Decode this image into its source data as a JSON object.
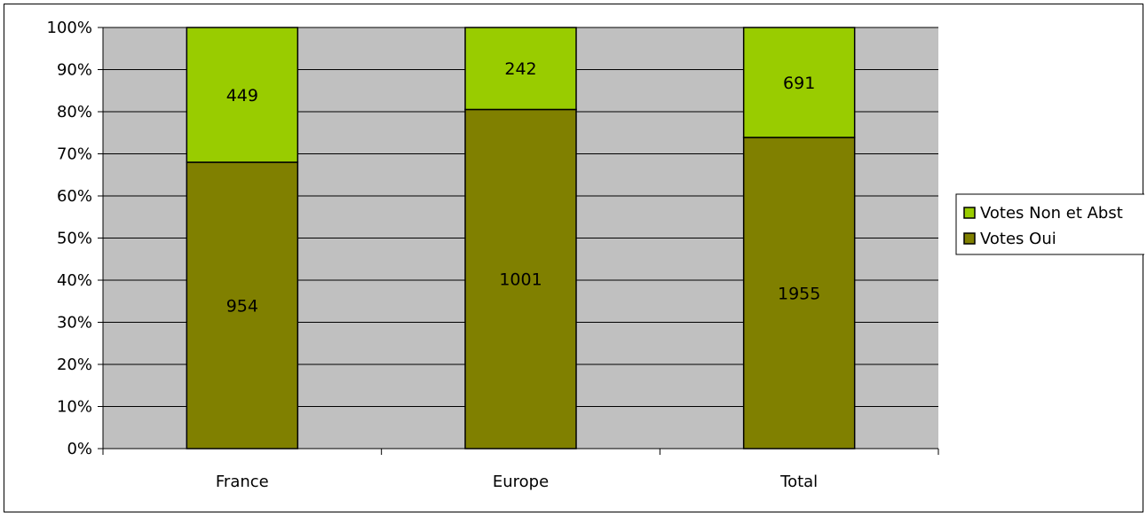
{
  "chart_data": {
    "type": "bar",
    "stacking": "percent",
    "categories": [
      "France",
      "Europe",
      "Total"
    ],
    "series": [
      {
        "name": "Votes Oui",
        "values": [
          954,
          1001,
          1955
        ],
        "labels": [
          "954",
          "1001",
          "1955"
        ],
        "color": "#808000"
      },
      {
        "name": "Votes Non et Abst",
        "values": [
          449,
          242,
          691
        ],
        "labels": [
          "449",
          "242",
          "691"
        ],
        "color": "#99CC00"
      }
    ],
    "y_ticks": [
      "0%",
      "10%",
      "20%",
      "30%",
      "40%",
      "50%",
      "60%",
      "70%",
      "80%",
      "90%",
      "100%"
    ],
    "ylim": [
      0,
      100
    ],
    "grid": true,
    "plot_background": "#C0C0C0",
    "legend": {
      "position": "right",
      "items": [
        {
          "label": "Votes Non et Abst",
          "color": "#99CC00"
        },
        {
          "label": "Votes Oui",
          "color": "#808000"
        }
      ]
    }
  }
}
